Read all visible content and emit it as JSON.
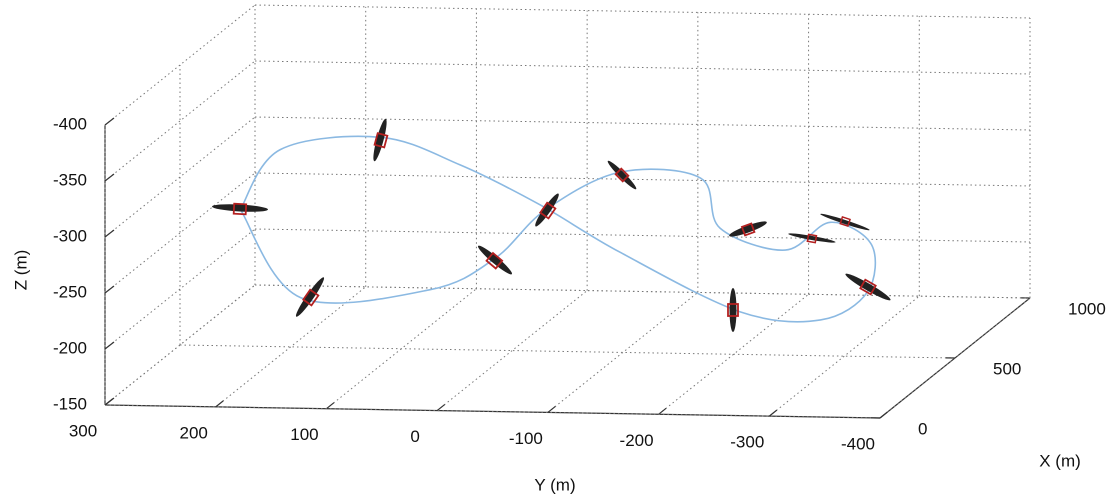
{
  "chart_data": {
    "type": "line3d",
    "xlabel": "X (m)",
    "ylabel": "Y (m)",
    "zlabel": "Z (m)",
    "xlim": [
      0,
      1000
    ],
    "xticks": [
      0,
      500,
      1000
    ],
    "ylim": [
      300,
      -400
    ],
    "yticks": [
      300,
      200,
      100,
      0,
      -100,
      -200,
      -300,
      -400
    ],
    "zlim": [
      -150,
      -400
    ],
    "zticks": [
      -150,
      -200,
      -250,
      -300,
      -350,
      -400
    ],
    "grid": true,
    "color": "#8bb9e2",
    "x": [
      600,
      300,
      300,
      400,
      500,
      600,
      700,
      750,
      800,
      850,
      800,
      700,
      600,
      500,
      450,
      450,
      500,
      550,
      600,
      600
    ],
    "y": [
      259,
      164,
      47,
      2,
      -30,
      -84,
      -143,
      -154,
      -206,
      -240,
      -284,
      -294,
      -265,
      -206,
      -104,
      -32,
      47,
      126,
      223,
      259
    ],
    "z": [
      -261,
      -216,
      -225,
      -243,
      -276,
      -300,
      -285,
      -235,
      -211,
      -231,
      -217,
      -186,
      -171,
      -188,
      -245,
      -286,
      -315,
      -333,
      -315,
      -261
    ]
  }
}
